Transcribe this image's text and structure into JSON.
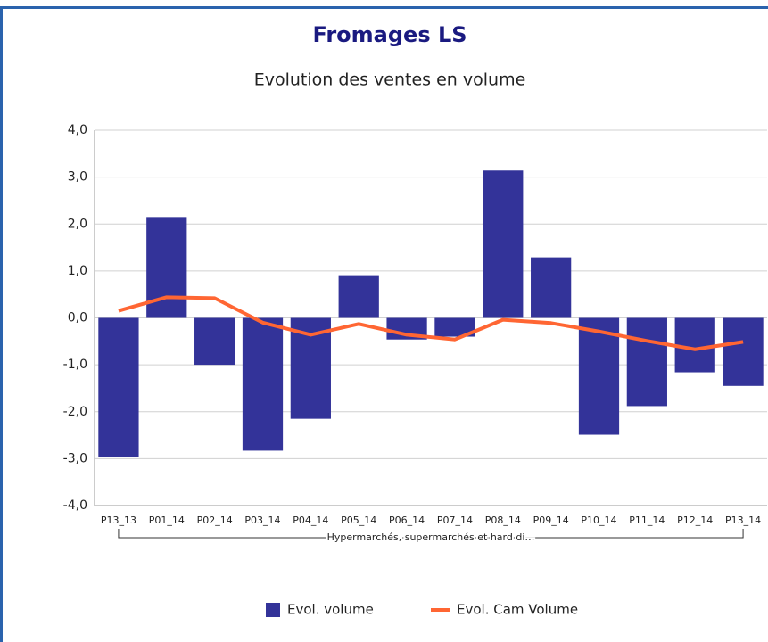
{
  "chart_data": {
    "type": "bar",
    "title": "Fromages LS",
    "subtitle": "Evolution des ventes en volume",
    "categories": [
      "P13_13",
      "P01_14",
      "P02_14",
      "P03_14",
      "P04_14",
      "P05_14",
      "P06_14",
      "P07_14",
      "P08_14",
      "P09_14",
      "P10_14",
      "P11_14",
      "P12_14",
      "P13_14"
    ],
    "group_label": "Hypermarchés, supermarchés et hard di…",
    "series": [
      {
        "name": "Evol. volume",
        "type": "bar",
        "color": "#333399",
        "values": [
          -2.97,
          2.15,
          -1.0,
          -2.83,
          -2.15,
          0.91,
          -0.46,
          -0.4,
          3.14,
          1.29,
          -2.49,
          -1.88,
          -1.16,
          -1.45
        ]
      },
      {
        "name": "Evol. Cam Volume",
        "type": "line",
        "color": "#ff6633",
        "values": [
          0.15,
          0.44,
          0.42,
          -0.1,
          -0.36,
          -0.13,
          -0.36,
          -0.46,
          -0.04,
          -0.11,
          -0.29,
          -0.49,
          -0.67,
          -0.51
        ]
      }
    ],
    "ylim": [
      -4,
      4
    ],
    "yticks": [
      {
        "value": -4,
        "label": "-4,0"
      },
      {
        "value": -3,
        "label": "-3,0"
      },
      {
        "value": -2,
        "label": "-2,0"
      },
      {
        "value": -1,
        "label": "-1,0"
      },
      {
        "value": 0,
        "label": "0,0"
      },
      {
        "value": 1,
        "label": "1,0"
      },
      {
        "value": 2,
        "label": "2,0"
      },
      {
        "value": 3,
        "label": "3,0"
      },
      {
        "value": 4,
        "label": "4,0"
      }
    ],
    "grid": true,
    "legend": "bottom"
  }
}
